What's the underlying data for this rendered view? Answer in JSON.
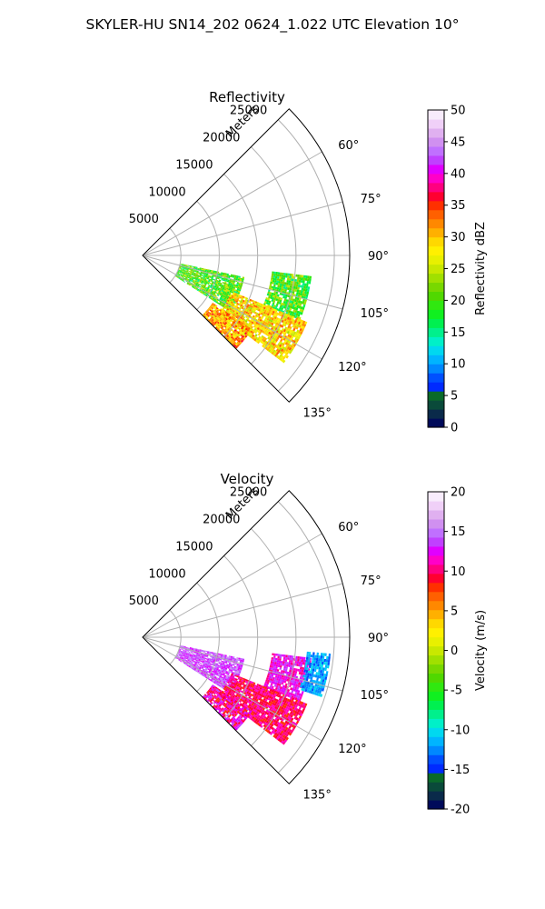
{
  "figure": {
    "suptitle": "SKYLER-HU  SN14_202  0624_1.022 UTC Elevation 10°"
  },
  "chart_data": [
    {
      "type": "heatmap",
      "projection": "polar-sector",
      "title": "Reflectivity",
      "range_label": "Meters",
      "azimuth_range_deg": [
        45,
        135
      ],
      "range_limit_m": [
        0,
        27000
      ],
      "range_ticks": [
        5000,
        10000,
        15000,
        20000,
        25000
      ],
      "azimuth_ticks": [
        60,
        75,
        90,
        105,
        120,
        135
      ],
      "grid": true,
      "colorbar": {
        "label": "Reflectivity dBZ",
        "min": 0,
        "max": 50,
        "ticks": [
          0,
          5,
          10,
          15,
          20,
          25,
          30,
          35,
          40,
          45,
          50
        ],
        "colors": [
          "#000a5a",
          "#0a2a4a",
          "#0a4a3a",
          "#0a6a2a",
          "#002aff",
          "#0050ff",
          "#0088ff",
          "#00b4ff",
          "#00d8f0",
          "#00f0c8",
          "#00f08c",
          "#00f050",
          "#10f020",
          "#30e810",
          "#50d800",
          "#78d800",
          "#a0e000",
          "#c8e800",
          "#e8f000",
          "#fff000",
          "#ffd800",
          "#ffb000",
          "#ff8800",
          "#ff6000",
          "#ff3000",
          "#ff0030",
          "#ff0080",
          "#ff00c8",
          "#e000ff",
          "#c040ff",
          "#c070ff",
          "#d090f0",
          "#e0b0f0",
          "#f0d0f8",
          "#f8ecfc"
        ],
        "colormap": "pyart_HomeyerRainbow"
      },
      "echoes": [
        {
          "az": [
            102,
            122
          ],
          "r": [
            5000,
            13500
          ],
          "value_range": [
            15,
            25
          ],
          "description_value": "green band"
        },
        {
          "az": [
            97,
            112
          ],
          "r": [
            17000,
            22000
          ],
          "value_range": [
            15,
            25
          ]
        },
        {
          "az": [
            112,
            127
          ],
          "r": [
            12500,
            23000
          ],
          "value_range": [
            24,
            34
          ]
        },
        {
          "az": [
            124,
            135
          ],
          "r": [
            11000,
            17000
          ],
          "value_range": [
            26,
            36
          ]
        }
      ]
    },
    {
      "type": "heatmap",
      "projection": "polar-sector",
      "title": "Velocity",
      "range_label": "Meters",
      "azimuth_range_deg": [
        45,
        135
      ],
      "range_limit_m": [
        0,
        27000
      ],
      "range_ticks": [
        5000,
        10000,
        15000,
        20000,
        25000
      ],
      "azimuth_ticks": [
        60,
        75,
        90,
        105,
        120,
        135
      ],
      "grid": true,
      "colorbar": {
        "label": "Velocity (m/s)",
        "min": -20,
        "max": 20,
        "ticks": [
          -20,
          -15,
          -10,
          -5,
          0,
          5,
          10,
          15,
          20
        ],
        "colors": [
          "#000a5a",
          "#0a2a4a",
          "#0a4a3a",
          "#0a6a2a",
          "#002aff",
          "#0050ff",
          "#0088ff",
          "#00b4ff",
          "#00d8f0",
          "#00f0c8",
          "#00f08c",
          "#00f050",
          "#10f020",
          "#30e810",
          "#50d800",
          "#78d800",
          "#a0e000",
          "#c8e800",
          "#e8f000",
          "#fff000",
          "#ffd800",
          "#ffb000",
          "#ff8800",
          "#ff6000",
          "#ff3000",
          "#ff0030",
          "#ff0080",
          "#ff00c8",
          "#e000ff",
          "#c040ff",
          "#c070ff",
          "#d090f0",
          "#e0b0f0",
          "#f0d0f8",
          "#f8ecfc"
        ],
        "colormap": "pyart_BuDRd18-like"
      },
      "echoes": [
        {
          "az": [
            102,
            122
          ],
          "r": [
            5000,
            13500
          ],
          "value_range": [
            12,
            16
          ]
        },
        {
          "az": [
            97,
            112
          ],
          "r": [
            17000,
            22000
          ],
          "value_range": [
            10,
            14
          ]
        },
        {
          "az": [
            112,
            127
          ],
          "r": [
            12500,
            23000
          ],
          "value_range": [
            8,
            12
          ]
        },
        {
          "az": [
            124,
            135
          ],
          "r": [
            11000,
            17000
          ],
          "value_range": [
            8,
            14
          ]
        },
        {
          "az": [
            95,
            108
          ],
          "r": [
            21500,
            24500
          ],
          "value_range": [
            -14,
            -10
          ]
        }
      ]
    }
  ]
}
